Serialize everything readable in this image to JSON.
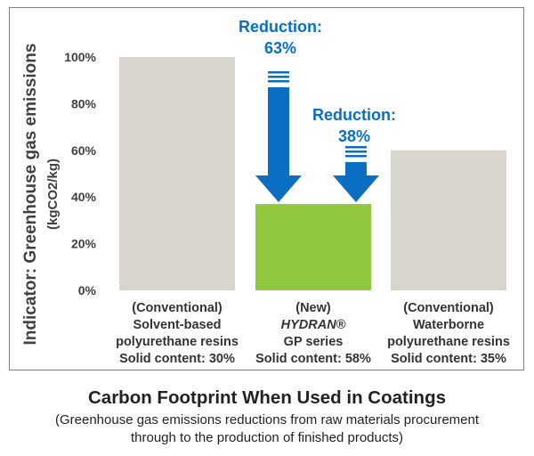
{
  "chart_data": {
    "type": "bar",
    "ylabel": "Indicator: Greenhouse gas emissions",
    "ylabel_unit": "(kgCO2/kg)",
    "ylim": [
      0,
      100
    ],
    "yticks": [
      "0%",
      "20%",
      "40%",
      "60%",
      "80%",
      "100%"
    ],
    "categories": [
      {
        "lines": [
          "(Conventional)",
          "Solvent-based",
          "polyurethane resins",
          "Solid content: 30%"
        ],
        "italic_line": -1
      },
      {
        "lines": [
          "(New)",
          "HYDRAN®",
          "GP series",
          "Solid content: 58%"
        ],
        "italic_line": 1
      },
      {
        "lines": [
          "(Conventional)",
          "Waterborne",
          "polyurethane resins",
          "Solid content: 35%"
        ],
        "italic_line": -1
      }
    ],
    "values": [
      100,
      37,
      60
    ],
    "bar_colors": [
      "#d8d4ce",
      "#92c83e",
      "#d8d4ce"
    ],
    "annotations": [
      {
        "label_lines": [
          "Reduction:",
          "63%"
        ],
        "from_value": 100,
        "to_value": 37
      },
      {
        "label_lines": [
          "Reduction:",
          "38%"
        ],
        "from_value": 60,
        "to_value": 37
      }
    ],
    "arrow_color": "#0a6fc2",
    "grid": false
  },
  "caption": {
    "title": "Carbon Footprint When Used in Coatings",
    "subtitle_line1": "(Greenhouse gas emissions reductions from raw materials procurement",
    "subtitle_line2": "through to the production of finished products)"
  }
}
